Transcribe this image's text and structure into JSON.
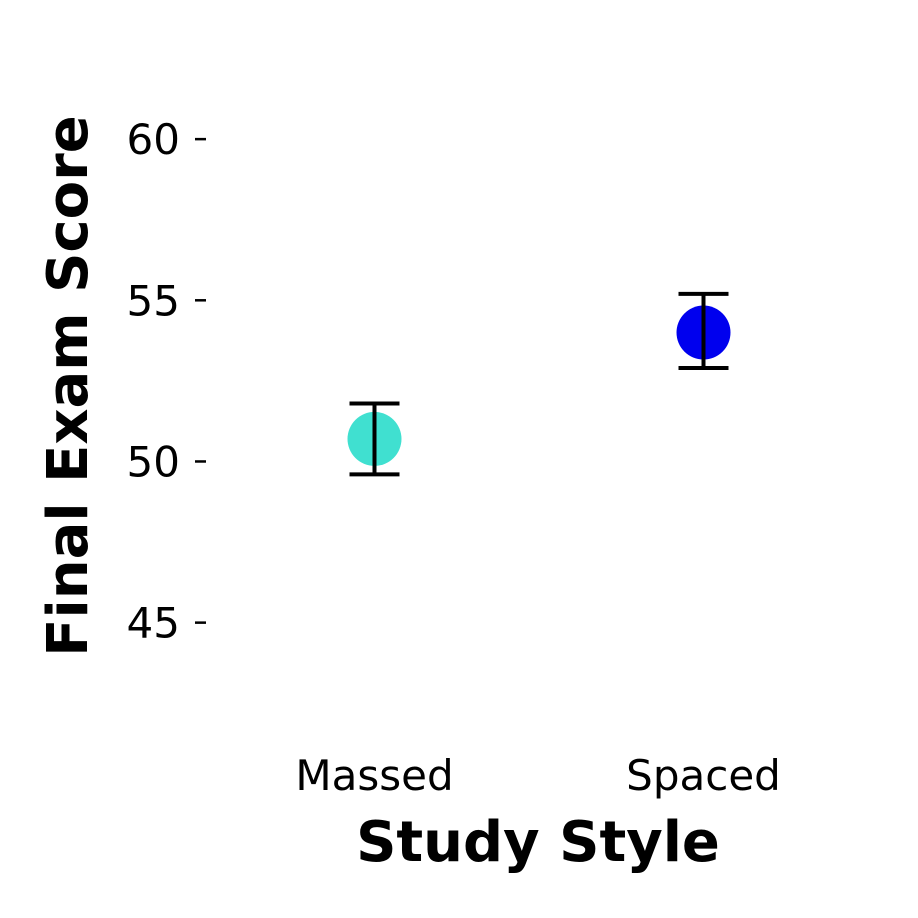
{
  "chart_data": {
    "type": "scatter",
    "title": "",
    "xlabel": "Study Style",
    "ylabel": "Final Exam Score",
    "ylim": [
      42.6,
      62.3
    ],
    "yticks": [
      45,
      50,
      55,
      60
    ],
    "categories": [
      "Massed",
      "Spaced"
    ],
    "points": [
      {
        "category": "Massed",
        "value": 50.7,
        "err_low": 49.6,
        "err_high": 51.8,
        "color": "#40E0D0"
      },
      {
        "category": "Spaced",
        "value": 54.0,
        "err_low": 52.9,
        "err_high": 55.2,
        "color": "#0000EE"
      }
    ],
    "grid": false,
    "legend": "none"
  }
}
